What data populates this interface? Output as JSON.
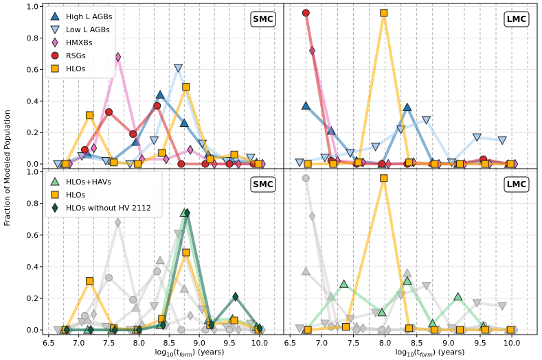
{
  "figure": {
    "xlabel": "log$_{10}$(t$_{form}$) (years)",
    "xlabel_main": "log",
    "xlabel_sub1": "10",
    "xlabel_mid": "(t",
    "xlabel_sub2": "form",
    "xlabel_end": ") (years)",
    "ylabel": "Fraction of Modeled Population"
  },
  "colors": {
    "blue": "#1f77b4",
    "lightblue": "#a6cdf2",
    "pink": "#e377c2",
    "red": "#d62728",
    "orange": "#ffb000",
    "green": "#7ed89b",
    "darkgreen": "#0b5a4b",
    "gray": "#c8c8c8"
  },
  "chart_data": [
    {
      "type": "line",
      "panel": "top-left",
      "title": "SMC",
      "xlim": [
        6.4,
        10.4
      ],
      "ylim": [
        -0.03,
        1.02
      ],
      "xticks": [
        6.5,
        7.0,
        7.5,
        8.0,
        8.5,
        9.0,
        9.5,
        10.0
      ],
      "yticks": [
        0.0,
        0.2,
        0.4,
        0.6,
        0.8,
        1.0
      ],
      "legend_position": "top-left",
      "series": [
        {
          "name": "High L AGBs",
          "marker": "triangle-up",
          "color": "blue",
          "line": "blue",
          "x": [
            6.75,
            7.15,
            7.55,
            7.95,
            8.35,
            8.75,
            9.15,
            9.55,
            9.95
          ],
          "y": [
            0.0,
            0.06,
            0.02,
            0.14,
            0.44,
            0.26,
            0.06,
            0.02,
            0.01
          ]
        },
        {
          "name": "Low L AGBs",
          "marker": "triangle-down",
          "color": "lightblue",
          "line": "lightblue",
          "x": [
            6.65,
            7.05,
            7.45,
            7.85,
            8.25,
            8.65,
            9.05,
            9.45,
            9.85
          ],
          "y": [
            0.0,
            0.05,
            0.02,
            0.0,
            0.15,
            0.61,
            0.13,
            0.02,
            0.04
          ]
        },
        {
          "name": "HMXBs",
          "marker": "diamond",
          "color": "pink",
          "line": "pink",
          "x": [
            6.85,
            7.25,
            7.65,
            8.05,
            8.45,
            8.85,
            9.25,
            9.65,
            10.05
          ],
          "y": [
            0.0,
            0.1,
            0.68,
            0.03,
            0.03,
            0.09,
            0.0,
            0.0,
            0.0
          ]
        },
        {
          "name": "RSGs",
          "marker": "circle",
          "color": "red",
          "line": "red",
          "x": [
            7.1,
            7.5,
            7.9,
            8.3,
            8.7,
            9.1,
            9.5,
            9.9
          ],
          "y": [
            0.09,
            0.33,
            0.19,
            0.37,
            0.0,
            0.0,
            0.0,
            0.0
          ]
        },
        {
          "name": "HLOs",
          "marker": "square",
          "color": "orange",
          "line": "orange",
          "x": [
            6.78,
            7.18,
            7.58,
            7.98,
            8.38,
            8.78,
            9.18,
            9.58,
            9.98
          ],
          "y": [
            0.0,
            0.31,
            0.01,
            0.0,
            0.07,
            0.49,
            0.03,
            0.06,
            0.0
          ]
        }
      ]
    },
    {
      "type": "line",
      "panel": "top-right",
      "title": "LMC",
      "xlim": [
        6.4,
        10.4
      ],
      "ylim": [
        -0.03,
        1.02
      ],
      "series": [
        {
          "name": "High L AGBs",
          "marker": "triangle-up",
          "color": "blue",
          "line": "blue",
          "x": [
            6.75,
            7.15,
            7.55,
            7.95,
            8.35,
            8.75,
            9.15,
            9.55,
            9.95
          ],
          "y": [
            0.37,
            0.21,
            0.02,
            0.0,
            0.36,
            0.01,
            0.0,
            0.02,
            0.0
          ]
        },
        {
          "name": "Low L AGBs",
          "marker": "triangle-down",
          "color": "lightblue",
          "line": "lightblue",
          "x": [
            6.65,
            7.05,
            7.45,
            7.85,
            8.25,
            8.65,
            9.05,
            9.45,
            9.85
          ],
          "y": [
            0.01,
            0.04,
            0.07,
            0.11,
            0.22,
            0.28,
            0.01,
            0.17,
            0.15
          ]
        },
        {
          "name": "HMXBs",
          "marker": "diamond",
          "color": "pink",
          "line": "pink",
          "x": [
            6.85,
            7.25,
            7.65,
            8.05,
            8.45,
            8.85,
            9.25,
            9.65,
            10.05
          ],
          "y": [
            0.72,
            0.02,
            0.01,
            0.0,
            0.01,
            0.0,
            0.0,
            0.0,
            0.0
          ]
        },
        {
          "name": "RSGs",
          "marker": "circle",
          "color": "red",
          "line": "red",
          "x": [
            6.75,
            7.15,
            7.55,
            7.95,
            8.35,
            8.75,
            9.15,
            9.55,
            9.95
          ],
          "y": [
            0.96,
            0.02,
            0.0,
            0.0,
            0.0,
            0.0,
            0.0,
            0.03,
            0.0
          ]
        },
        {
          "name": "HLOs",
          "marker": "square",
          "color": "orange",
          "line": "orange",
          "x": [
            6.78,
            7.18,
            7.58,
            7.98,
            8.38,
            8.78,
            9.18,
            9.58,
            9.98
          ],
          "y": [
            0.0,
            0.0,
            0.01,
            0.96,
            0.01,
            0.0,
            0.0,
            0.0,
            0.0
          ]
        }
      ]
    },
    {
      "type": "line",
      "panel": "bottom-left",
      "title": "SMC",
      "xlim": [
        6.4,
        10.4
      ],
      "ylim": [
        -0.03,
        1.02
      ],
      "legend_position": "top-left",
      "background_series": "gray copy of top-left panel (AGBs, HMXBs, RSGs)",
      "series": [
        {
          "name": "HLOs+HAVs",
          "marker": "triangle-up",
          "color": "green",
          "line": "green",
          "x": [
            6.75,
            7.15,
            7.55,
            7.95,
            8.35,
            8.75,
            9.15,
            9.55,
            9.95
          ],
          "y": [
            0.0,
            0.0,
            0.0,
            0.0,
            0.03,
            0.74,
            0.06,
            0.07,
            0.02
          ]
        },
        {
          "name": "HLOs",
          "marker": "square",
          "color": "orange",
          "line": "orange",
          "x": [
            6.78,
            7.18,
            7.58,
            7.98,
            8.38,
            8.78,
            9.18,
            9.58,
            9.98
          ],
          "y": [
            0.0,
            0.31,
            0.01,
            0.0,
            0.07,
            0.49,
            0.03,
            0.06,
            0.0
          ]
        },
        {
          "name": "HLOs without HV 2112",
          "marker": "diamond",
          "color": "darkgreen",
          "line": "darkgreen",
          "x": [
            6.8,
            7.2,
            7.6,
            8.0,
            8.4,
            8.8,
            9.2,
            9.6,
            10.0
          ],
          "y": [
            0.0,
            0.0,
            0.0,
            0.0,
            0.03,
            0.74,
            0.03,
            0.21,
            0.01
          ]
        }
      ]
    },
    {
      "type": "line",
      "panel": "bottom-right",
      "title": "LMC",
      "xlim": [
        6.4,
        10.4
      ],
      "ylim": [
        -0.03,
        1.02
      ],
      "background_series": "gray copy of top-right panel (AGBs, HMXBs, RSGs)",
      "series": [
        {
          "name": "HLOs+HAVs",
          "marker": "triangle-up",
          "color": "green",
          "line": "green",
          "x": [
            6.75,
            7.35,
            7.95,
            8.35,
            8.75,
            9.15,
            9.55
          ],
          "y": [
            0.0,
            0.29,
            0.11,
            0.31,
            0.04,
            0.21,
            0.02
          ]
        },
        {
          "name": "HLOs",
          "marker": "square",
          "color": "orange",
          "line": "orange",
          "x": [
            6.78,
            7.38,
            7.98,
            8.38,
            8.78,
            9.18,
            9.58,
            9.98
          ],
          "y": [
            0.0,
            0.02,
            0.96,
            0.01,
            0.0,
            0.0,
            0.0,
            0.0
          ]
        }
      ]
    }
  ]
}
